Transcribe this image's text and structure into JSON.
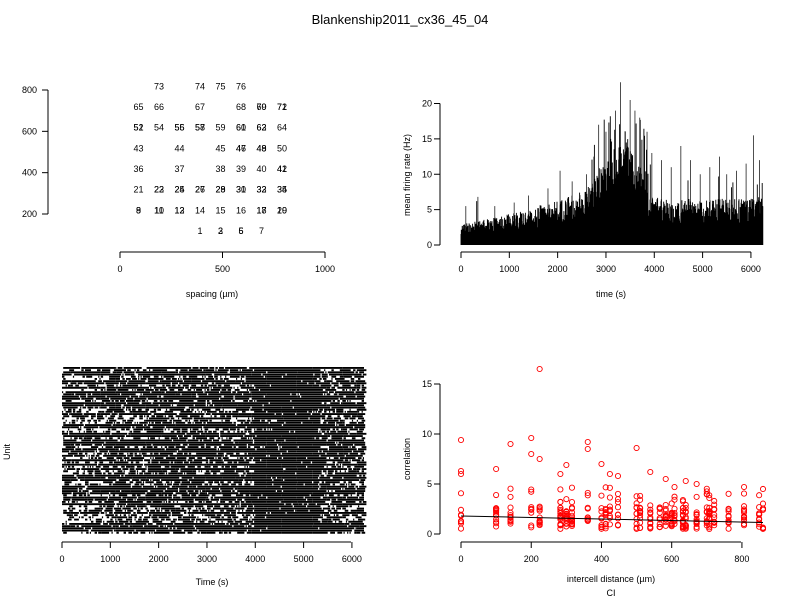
{
  "figure": {
    "title": "Blankenship2011_cx36_45_04"
  },
  "colors": {
    "ink": "#000000",
    "points": "#ff0000",
    "background": "#ffffff"
  },
  "chart_data": [
    {
      "id": "electrode-layout",
      "type": "scatter",
      "title": "",
      "xlabel": "spacing (µm)",
      "ylabel": "",
      "xlim": [
        0,
        1000
      ],
      "ylim": [
        200,
        800
      ],
      "xticks": [
        0,
        500,
        1000
      ],
      "yticks": [
        200,
        400,
        600,
        800
      ],
      "labels": [
        {
          "text": "73",
          "x": 200,
          "y": 820
        },
        {
          "text": "74",
          "x": 400,
          "y": 820
        },
        {
          "text": "75",
          "x": 500,
          "y": 820
        },
        {
          "text": "76",
          "x": 600,
          "y": 820
        },
        {
          "text": "65",
          "x": 100,
          "y": 720
        },
        {
          "text": "66",
          "x": 200,
          "y": 720
        },
        {
          "text": "67",
          "x": 400,
          "y": 720
        },
        {
          "text": "68",
          "x": 600,
          "y": 720
        },
        {
          "text": "69",
          "x": 700,
          "y": 720
        },
        {
          "text": "70",
          "x": 700,
          "y": 720
        },
        {
          "text": "71",
          "x": 800,
          "y": 720
        },
        {
          "text": "72",
          "x": 800,
          "y": 720
        },
        {
          "text": "51",
          "x": 100,
          "y": 620
        },
        {
          "text": "52",
          "x": 100,
          "y": 620
        },
        {
          "text": "54",
          "x": 200,
          "y": 620
        },
        {
          "text": "55",
          "x": 300,
          "y": 620
        },
        {
          "text": "56",
          "x": 300,
          "y": 620
        },
        {
          "text": "57",
          "x": 400,
          "y": 620
        },
        {
          "text": "58",
          "x": 400,
          "y": 620
        },
        {
          "text": "59",
          "x": 500,
          "y": 620
        },
        {
          "text": "60",
          "x": 600,
          "y": 620
        },
        {
          "text": "61",
          "x": 600,
          "y": 620
        },
        {
          "text": "62",
          "x": 700,
          "y": 620
        },
        {
          "text": "63",
          "x": 700,
          "y": 620
        },
        {
          "text": "64",
          "x": 800,
          "y": 620
        },
        {
          "text": "43",
          "x": 100,
          "y": 520
        },
        {
          "text": "44",
          "x": 300,
          "y": 520
        },
        {
          "text": "45",
          "x": 500,
          "y": 520
        },
        {
          "text": "46",
          "x": 600,
          "y": 520
        },
        {
          "text": "47",
          "x": 600,
          "y": 520
        },
        {
          "text": "48",
          "x": 700,
          "y": 520
        },
        {
          "text": "49",
          "x": 700,
          "y": 520
        },
        {
          "text": "50",
          "x": 800,
          "y": 520
        },
        {
          "text": "36",
          "x": 100,
          "y": 420
        },
        {
          "text": "37",
          "x": 300,
          "y": 420
        },
        {
          "text": "38",
          "x": 500,
          "y": 420
        },
        {
          "text": "39",
          "x": 600,
          "y": 420
        },
        {
          "text": "40",
          "x": 700,
          "y": 420
        },
        {
          "text": "41",
          "x": 800,
          "y": 420
        },
        {
          "text": "42",
          "x": 800,
          "y": 420
        },
        {
          "text": "21",
          "x": 100,
          "y": 320
        },
        {
          "text": "22",
          "x": 200,
          "y": 320
        },
        {
          "text": "23",
          "x": 200,
          "y": 320
        },
        {
          "text": "24",
          "x": 300,
          "y": 320
        },
        {
          "text": "25",
          "x": 300,
          "y": 320
        },
        {
          "text": "26",
          "x": 400,
          "y": 320
        },
        {
          "text": "27",
          "x": 400,
          "y": 320
        },
        {
          "text": "28",
          "x": 500,
          "y": 320
        },
        {
          "text": "29",
          "x": 500,
          "y": 320
        },
        {
          "text": "30",
          "x": 600,
          "y": 320
        },
        {
          "text": "31",
          "x": 600,
          "y": 320
        },
        {
          "text": "32",
          "x": 700,
          "y": 320
        },
        {
          "text": "33",
          "x": 700,
          "y": 320
        },
        {
          "text": "34",
          "x": 800,
          "y": 320
        },
        {
          "text": "35",
          "x": 800,
          "y": 320
        },
        {
          "text": "8",
          "x": 100,
          "y": 220
        },
        {
          "text": "9",
          "x": 100,
          "y": 220
        },
        {
          "text": "10",
          "x": 200,
          "y": 220
        },
        {
          "text": "11",
          "x": 200,
          "y": 220
        },
        {
          "text": "12",
          "x": 300,
          "y": 220
        },
        {
          "text": "13",
          "x": 300,
          "y": 220
        },
        {
          "text": "14",
          "x": 400,
          "y": 220
        },
        {
          "text": "15",
          "x": 500,
          "y": 220
        },
        {
          "text": "16",
          "x": 600,
          "y": 220
        },
        {
          "text": "17",
          "x": 700,
          "y": 220
        },
        {
          "text": "18",
          "x": 700,
          "y": 220
        },
        {
          "text": "19",
          "x": 800,
          "y": 220
        },
        {
          "text": "20",
          "x": 800,
          "y": 220
        },
        {
          "text": "1",
          "x": 400,
          "y": 120
        },
        {
          "text": "2",
          "x": 500,
          "y": 120
        },
        {
          "text": "3",
          "x": 500,
          "y": 120
        },
        {
          "text": "5",
          "x": 600,
          "y": 120
        },
        {
          "text": "6",
          "x": 600,
          "y": 120
        },
        {
          "text": "7",
          "x": 700,
          "y": 120
        }
      ]
    },
    {
      "id": "firing-rate",
      "type": "area",
      "title": "",
      "xlabel": "time (s)",
      "ylabel": "mean firing rate (Hz)",
      "xlim": [
        0,
        6250
      ],
      "ylim": [
        0,
        20
      ],
      "xticks": [
        0,
        1000,
        2000,
        3000,
        4000,
        5000,
        6000
      ],
      "yticks": [
        0,
        5,
        10,
        15,
        20
      ],
      "envelope": {
        "x": [
          0,
          300,
          600,
          900,
          1200,
          1500,
          1800,
          2100,
          2400,
          2700,
          2900,
          3100,
          3300,
          3500,
          3700,
          3900,
          4100,
          4400,
          4700,
          5000,
          5300,
          5600,
          5900,
          6250
        ],
        "y": [
          2,
          2.3,
          2.6,
          2.9,
          3.2,
          3.6,
          4.2,
          4.5,
          5.0,
          6.0,
          7.5,
          9.0,
          10.0,
          9.5,
          8.0,
          5.5,
          4.5,
          4.5,
          4.3,
          4.3,
          4.5,
          4.5,
          4.5,
          4.8
        ]
      },
      "spikes": [
        {
          "x": 100,
          "y": 5.5
        },
        {
          "x": 350,
          "y": 6.8
        },
        {
          "x": 700,
          "y": 5.5
        },
        {
          "x": 1100,
          "y": 6.0
        },
        {
          "x": 1400,
          "y": 7.0
        },
        {
          "x": 1800,
          "y": 8.0
        },
        {
          "x": 2050,
          "y": 10.5
        },
        {
          "x": 2300,
          "y": 9.0
        },
        {
          "x": 2600,
          "y": 10.0
        },
        {
          "x": 2750,
          "y": 12.5
        },
        {
          "x": 2850,
          "y": 17.0
        },
        {
          "x": 3000,
          "y": 16.0
        },
        {
          "x": 3100,
          "y": 15.0
        },
        {
          "x": 3200,
          "y": 19.0
        },
        {
          "x": 3300,
          "y": 23.0
        },
        {
          "x": 3400,
          "y": 16.0
        },
        {
          "x": 3500,
          "y": 20.5
        },
        {
          "x": 3600,
          "y": 19.0
        },
        {
          "x": 3700,
          "y": 18.0
        },
        {
          "x": 3850,
          "y": 16.0
        },
        {
          "x": 3950,
          "y": 13.0
        },
        {
          "x": 4150,
          "y": 12.0
        },
        {
          "x": 4350,
          "y": 11.0
        },
        {
          "x": 4550,
          "y": 14.0
        },
        {
          "x": 4750,
          "y": 12.0
        },
        {
          "x": 4950,
          "y": 10.0
        },
        {
          "x": 5150,
          "y": 11.0
        },
        {
          "x": 5350,
          "y": 12.5
        },
        {
          "x": 5500,
          "y": 10.0
        },
        {
          "x": 5700,
          "y": 10.5
        },
        {
          "x": 5900,
          "y": 11.5
        },
        {
          "x": 6050,
          "y": 15.5
        },
        {
          "x": 6180,
          "y": 12.0
        }
      ]
    },
    {
      "id": "raster",
      "type": "heatmap",
      "title": "",
      "xlabel": "Time (s)",
      "ylabel": "Unit",
      "xlim": [
        0,
        6250
      ],
      "xticks": [
        0,
        1000,
        2000,
        3000,
        4000,
        5000,
        6000
      ],
      "units": 76
    },
    {
      "id": "correlation-distance",
      "type": "scatter",
      "title": "",
      "xlabel": "intercell distance (µm)",
      "sublabel": "CI",
      "ylabel": "correlation",
      "xlim": [
        0,
        860
      ],
      "ylim": [
        0,
        16.5
      ],
      "xticks": [
        0,
        200,
        400,
        600,
        800
      ],
      "yticks": [
        0,
        5,
        10,
        15
      ],
      "distances": [
        0,
        100,
        141,
        200,
        224,
        283,
        300,
        316,
        361,
        400,
        412,
        424,
        447,
        500,
        510,
        539,
        566,
        583,
        600,
        608,
        632,
        640,
        671,
        700,
        707,
        721,
        762,
        806,
        849,
        860
      ],
      "outliers": [
        {
          "x": 0,
          "y": 9.4
        },
        {
          "x": 0,
          "y": 6.3
        },
        {
          "x": 0,
          "y": 6.0
        },
        {
          "x": 100,
          "y": 6.5
        },
        {
          "x": 141,
          "y": 9.0
        },
        {
          "x": 200,
          "y": 9.6
        },
        {
          "x": 200,
          "y": 8.0
        },
        {
          "x": 224,
          "y": 16.5
        },
        {
          "x": 224,
          "y": 7.5
        },
        {
          "x": 283,
          "y": 6.0
        },
        {
          "x": 300,
          "y": 6.9
        },
        {
          "x": 361,
          "y": 9.2
        },
        {
          "x": 361,
          "y": 8.5
        },
        {
          "x": 400,
          "y": 7.0
        },
        {
          "x": 424,
          "y": 6.0
        },
        {
          "x": 447,
          "y": 5.8
        },
        {
          "x": 500,
          "y": 8.6
        },
        {
          "x": 539,
          "y": 6.2
        },
        {
          "x": 583,
          "y": 5.5
        },
        {
          "x": 640,
          "y": 5.3
        },
        {
          "x": 671,
          "y": 5.0
        },
        {
          "x": 700,
          "y": 4.0
        },
        {
          "x": 707,
          "y": 3.6
        }
      ],
      "fit": {
        "x": [
          0,
          860
        ],
        "y": [
          1.8,
          1.15
        ]
      }
    }
  ]
}
